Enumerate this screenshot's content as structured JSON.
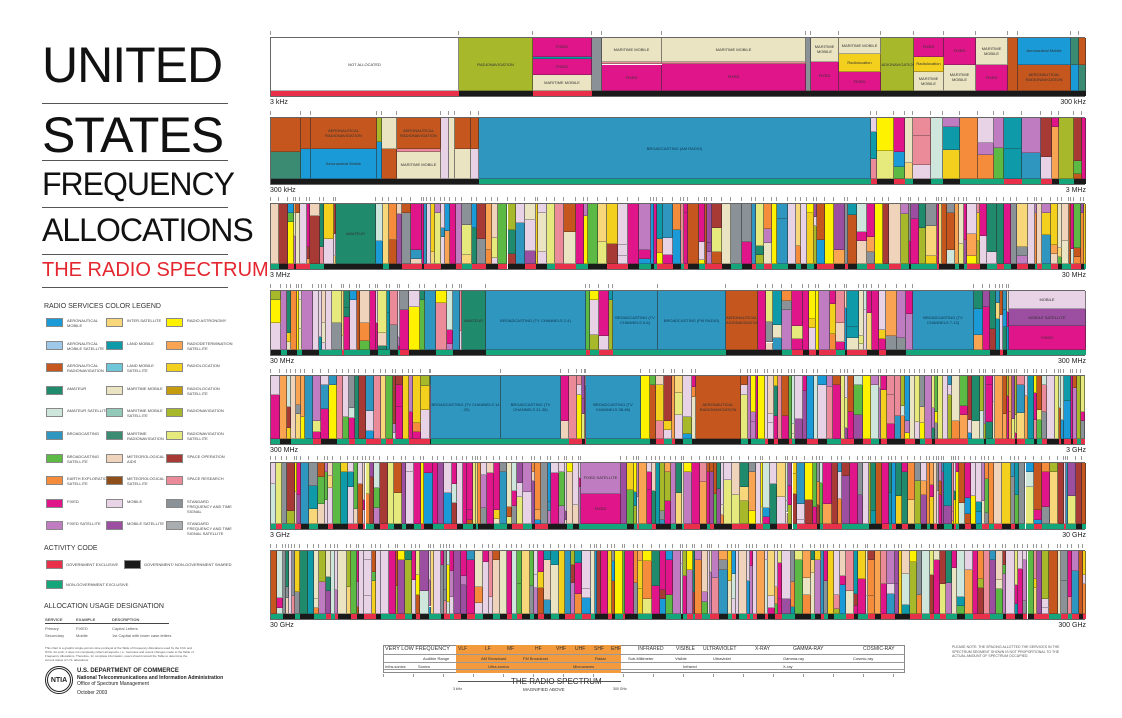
{
  "title": {
    "line1": "UNITED",
    "line2": "STATES",
    "line3": "FREQUENCY",
    "line4": "ALLOCATIONS",
    "subtitle": "THE RADIO SPECTRUM"
  },
  "legend": {
    "title": "RADIO SERVICES COLOR LEGEND",
    "items": [
      {
        "key": "aero_mobile",
        "label": "AERONAUTICAL MOBILE",
        "color": "#1a9ad6"
      },
      {
        "key": "aero_mobile_sat",
        "label": "AERONAUTICAL MOBILE SATELLITE",
        "color": "#9dc8ea"
      },
      {
        "key": "aero_radionav",
        "label": "AERONAUTICAL RADIONAVIGATION",
        "color": "#c4561e"
      },
      {
        "key": "amateur",
        "label": "AMATEUR",
        "color": "#1f8a6c"
      },
      {
        "key": "amateur_sat",
        "label": "AMATEUR SATELLITE",
        "color": "#cfe6dc"
      },
      {
        "key": "broadcasting",
        "label": "BROADCASTING",
        "color": "#2f96bf"
      },
      {
        "key": "broadcasting_sat",
        "label": "BROADCASTING SATELLITE",
        "color": "#5cb944"
      },
      {
        "key": "earth_expl_sat",
        "label": "EARTH EXPLORATION SATELLITE",
        "color": "#f58c3b"
      },
      {
        "key": "fixed",
        "label": "FIXED",
        "color": "#e0158a"
      },
      {
        "key": "fixed_sat",
        "label": "FIXED SATELLITE",
        "color": "#c07cc0"
      },
      {
        "key": "inter_sat",
        "label": "INTER-SATELLITE",
        "color": "#f7d77a"
      },
      {
        "key": "land_mobile",
        "label": "LAND MOBILE",
        "color": "#0e9aa8"
      },
      {
        "key": "land_mobile_sat",
        "label": "LAND MOBILE SATELLITE",
        "color": "#6fc6d8"
      },
      {
        "key": "maritime_mobile",
        "label": "MARITIME MOBILE",
        "color": "#ebe4c2"
      },
      {
        "key": "maritime_mobile_sat",
        "label": "MARITIME MOBILE SATELLITE",
        "color": "#93c9b8"
      },
      {
        "key": "maritime_radionav",
        "label": "MARITIME RADIONAVIGATION",
        "color": "#3b8a72"
      },
      {
        "key": "met_aids",
        "label": "METEOROLOGICAL AIDS",
        "color": "#efd3bb"
      },
      {
        "key": "met_sat",
        "label": "METEOROLOGICAL SATELLITE",
        "color": "#8f4f1b"
      },
      {
        "key": "mobile",
        "label": "MOBILE",
        "color": "#e7d2e6"
      },
      {
        "key": "mobile_sat",
        "label": "MOBILE SATELLITE",
        "color": "#9c4ea0"
      },
      {
        "key": "radio_astronomy",
        "label": "RADIO ASTRONOMY",
        "color": "#fff200"
      },
      {
        "key": "radiodet_sat",
        "label": "RADIODETERMINATION SATELLITE",
        "color": "#f9a452"
      },
      {
        "key": "radiolocation",
        "label": "RADIOLOCATION",
        "color": "#f4d01e"
      },
      {
        "key": "radioloc_sat",
        "label": "RADIOLOCATION SATELLITE",
        "color": "#c59c0e"
      },
      {
        "key": "radionav",
        "label": "RADIONAVIGATION",
        "color": "#a7b92a"
      },
      {
        "key": "radionav_sat",
        "label": "RADIONAVIGATION SATELLITE",
        "color": "#e6ea7c"
      },
      {
        "key": "space_operation",
        "label": "SPACE OPERATION",
        "color": "#a83a36"
      },
      {
        "key": "space_research",
        "label": "SPACE RESEARCH",
        "color": "#eb8a98"
      },
      {
        "key": "std_freq",
        "label": "STANDARD FREQUENCY AND TIME SIGNAL",
        "color": "#8b9297"
      },
      {
        "key": "std_freq_sat",
        "label": "STANDARD FREQUENCY AND TIME SIGNAL SATELLITE",
        "color": "#a9adb0"
      }
    ]
  },
  "activity": {
    "title": "ACTIVITY CODE",
    "items": [
      {
        "label": "GOVERNMENT EXCLUSIVE",
        "color": "#e8304a"
      },
      {
        "label": "GOVERNMENT/ NON-GOVERNMENT SHARED",
        "color": "#1a1a1a"
      },
      {
        "label": "NON-GOVERNMENT EXCLUSIVE",
        "color": "#14a57a"
      }
    ]
  },
  "usage": {
    "title": "ALLOCATION USAGE DESIGNATION",
    "headers": [
      "SERVICE",
      "EXAMPLE",
      "DESCRIPTION"
    ],
    "rows": [
      [
        "Primary",
        "FIXED",
        "Capital Letters"
      ],
      [
        "Secondary",
        "Mobile",
        "1st Capital with lower case letters"
      ]
    ]
  },
  "disclaimer": "This chart is a graphic single-point-in-time portrayal of the Table of Frequency Allocations used by the FCC and NTIA. As such, it does not completely reflect all aspects, i.e., footnotes and recent changes made to the Table of Frequency Allocations. Therefore, for complete information, users should consult the Table to determine the current status of U.S. allocations.",
  "agency": {
    "logo_text": "NTIA",
    "dept": "U.S. DEPARTMENT OF COMMERCE",
    "name": "National Telecommunications and Information Administration",
    "office": "Office of Spectrum Management",
    "date": "October 2003"
  },
  "labels": {
    "not_allocated": "NOT ALLOCATED",
    "radionavigation": "RADIONAVIGATION",
    "fixed": "FIXED",
    "maritime_mobile": "MARITIME MOBILE",
    "radiolocation_sec": "Radiolocation",
    "aero_radionav": "AERONAUTICAL RADIONAVIGATION",
    "aero_mobile_sec": "Aeronautical Mobile",
    "maritime_radionav": "MARITIME RADIONAVIGATION (RADIO BEACONS)",
    "am": "BROADCASTING (AM RADIO)",
    "mobile": "MOBILE",
    "amateur": "AMATEUR",
    "tv2_4": "BROADCASTING (TV CHANNELS 2-4)",
    "tv5_6": "BROADCASTING (TV CHANNELS 5-6)",
    "fm": "BROADCASTING (FM RADIO)",
    "tv7_13": "BROADCASTING (TV CHANNELS 7-13)",
    "mobile_sat": "MOBILE SATELLITE",
    "tv14_20": "BROADCASTING (TV CHANNELS 14 - 20)",
    "tv21_36": "BROADCASTING (TV CHANNELS 21-36)",
    "tv38_69": "BROADCASTING (TV CHANNELS 38-69)",
    "fixed_sat": "FIXED SATELLITE"
  },
  "rows": [
    {
      "start": "3 kHz",
      "end": "300 kHz"
    },
    {
      "start": "300 kHz",
      "end": "3 MHz"
    },
    {
      "start": "3 MHz",
      "end": "30 MHz"
    },
    {
      "start": "30 MHz",
      "end": "300 MHz"
    },
    {
      "start": "300 MHz",
      "end": "3 GHz"
    },
    {
      "start": "3 GHz",
      "end": "30 GHz"
    },
    {
      "start": "30 GHz",
      "end": "300 GHz"
    }
  ],
  "spectrum": {
    "bands": [
      "VERY LOW FREQUENCY",
      "VLF",
      "LF",
      "MF",
      "HF",
      "VHF",
      "UHF",
      "SHF",
      "EHF",
      "INFRARED",
      "VISIBLE",
      "ULTRAVIOLET",
      "X-RAY",
      "GAMMA-RAY",
      "COSMIC-RAY"
    ],
    "sources": [
      "Audible Range",
      "AM Broadcast",
      "FM Broadcast",
      "Radar",
      "Sub-Millimeter",
      "Visible",
      "Ultraviolet",
      "Gamma-ray",
      "Cosmic-ray"
    ],
    "uses": [
      "Infra-sonics",
      "Sonics",
      "Ultra-sonics",
      "Microwaves",
      "Infrared",
      "X-ray"
    ],
    "title": "THE RADIO SPECTRUM",
    "subtitle": "MAGNIFIED ABOVE",
    "start": "3 kHz",
    "end": "300 GHz",
    "highlight": "#f39a3c"
  },
  "note": "PLEASE NOTE: THE SPACING ALLOTTED THE SERVICES IN THE SPECTRUM SEGMENT SHOWN IS NOT PROPORTIONAL TO THE ACTUAL AMOUNT OF SPECTRUM OCCUPIED."
}
